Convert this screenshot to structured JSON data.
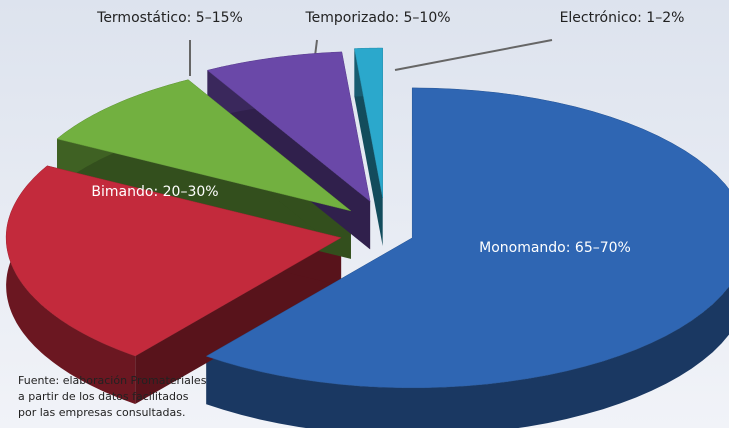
{
  "chart_data": {
    "type": "pie3d",
    "value_labels": [
      "Monomando: 65–70%",
      "Bimando: 20–30%",
      "Termostático: 5–15%",
      "Temporizado: 5–10%",
      "Electrónico: 1–2%"
    ],
    "values": [
      [
        65,
        70
      ],
      [
        20,
        30
      ],
      [
        5,
        15
      ],
      [
        5,
        10
      ],
      [
        1,
        2
      ]
    ],
    "colors": [
      "#2f66b3",
      "#c32a3c",
      "#72b040",
      "#6a48a8",
      "#2ba8cc"
    ],
    "note": [
      "Fuente: elaboración Promateriales",
      "a partir de los datos facilitados",
      "por las empresas consultadas."
    ]
  }
}
